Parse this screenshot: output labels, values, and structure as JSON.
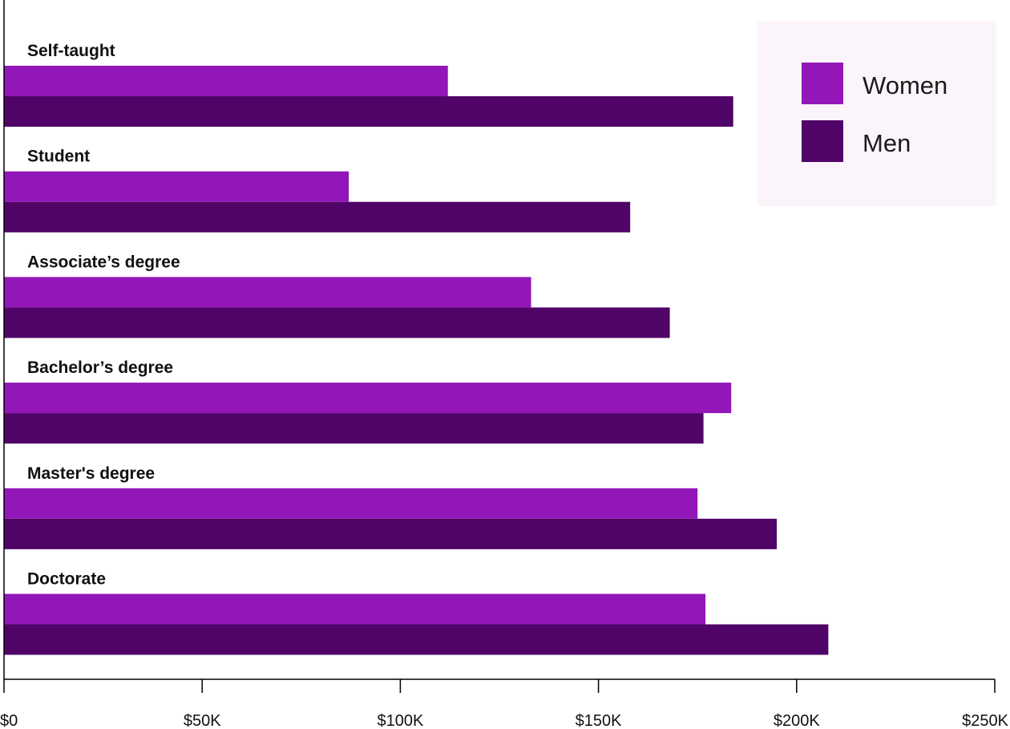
{
  "chart_data": {
    "type": "bar",
    "orientation": "horizontal",
    "categories": [
      "Self-taught",
      "Student",
      "Associate’s degree",
      "Bachelor’s degree",
      "Master's degree",
      "Doctorate"
    ],
    "series": [
      {
        "name": "Women",
        "color": "#9317b8",
        "values": [
          112000,
          87000,
          133000,
          183500,
          175000,
          177000
        ]
      },
      {
        "name": "Men",
        "color": "#500467",
        "values": [
          184000,
          158000,
          168000,
          176500,
          195000,
          208000
        ]
      }
    ],
    "xlim": [
      0,
      250000
    ],
    "xticks": [
      {
        "value": 0,
        "label": "$0"
      },
      {
        "value": 50000,
        "label": "$50K"
      },
      {
        "value": 100000,
        "label": "$100K"
      },
      {
        "value": 150000,
        "label": "$150K"
      },
      {
        "value": 200000,
        "label": "$200K"
      },
      {
        "value": 250000,
        "label": "$250K"
      }
    ],
    "legend": {
      "position": "top-right",
      "background": "#fbf5fb"
    },
    "grid": false
  }
}
